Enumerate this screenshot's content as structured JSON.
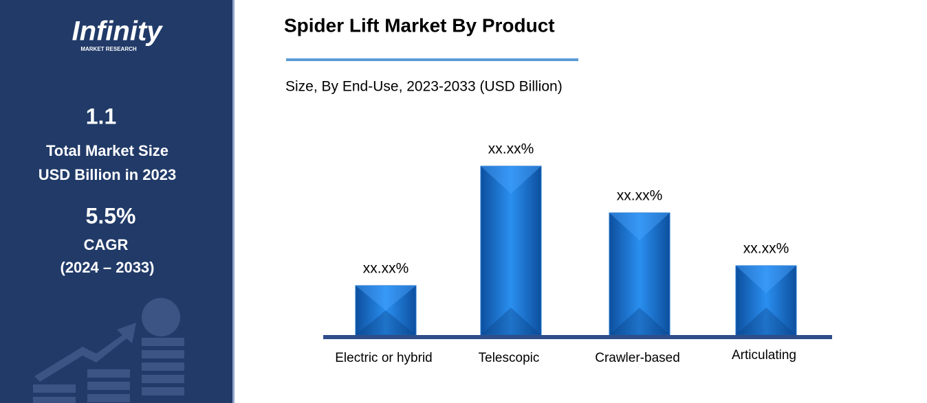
{
  "panel": {
    "logo": "Infinity",
    "logo_sub": "MARKET RESEARCH",
    "size_value": "1.1",
    "size_label_1": "Total Market Size",
    "size_label_2": "USD Billion in 2023",
    "cagr_value": "5.5%",
    "cagr_label": "CAGR",
    "cagr_period": "(2024 – 2033)"
  },
  "chart_data": {
    "type": "bar",
    "title": "Spider Lift Market By Product",
    "subtitle": "Size, By End-Use, 2023-2033 (USD Billion)",
    "categories": [
      "Electric or hybrid",
      "Telescopic",
      "Crawler-based",
      "Articulating"
    ],
    "values": [
      72,
      246,
      178,
      101
    ],
    "value_labels": [
      "xx.xx%",
      "xx.xx%",
      "xx.xx%",
      "xx.xx%"
    ],
    "color": "#1f77d0",
    "ylim": [
      0,
      260
    ]
  }
}
